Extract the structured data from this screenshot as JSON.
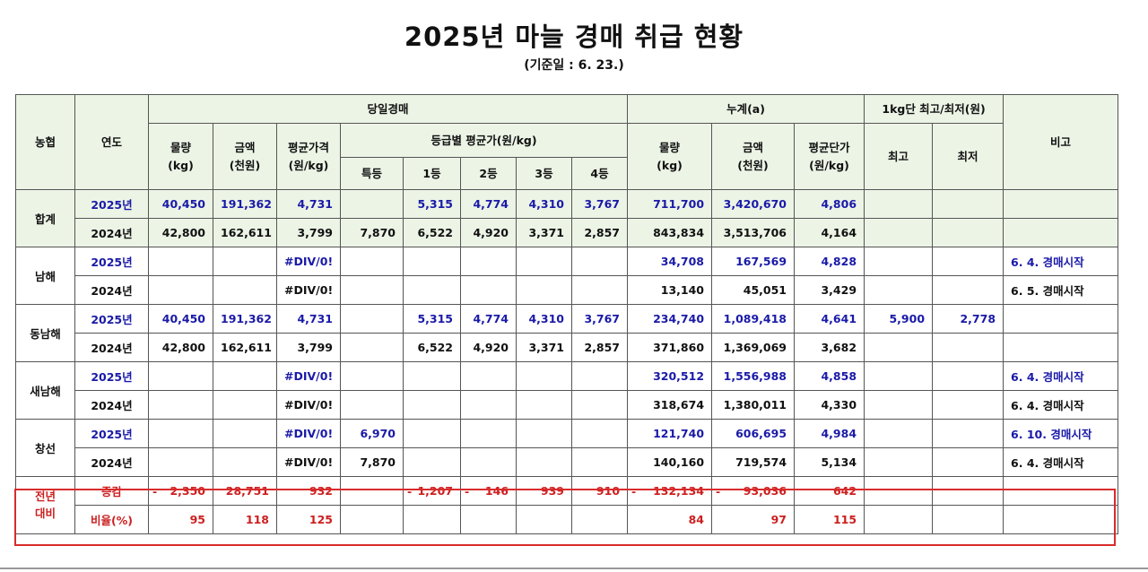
{
  "title": "2025년 마늘 경매 취급 현황",
  "subtitle": "(기준일 : 6. 23.)",
  "headers": {
    "coop": "농협",
    "year": "연도",
    "daily": "당일경매",
    "cumulative": "누계(a)",
    "maxmin": "1kg단 최고/최저(원)",
    "note": "비고",
    "volume": "물량",
    "volume_unit": "(kg)",
    "amount": "금액",
    "amount_unit": "(천원)",
    "avg_price": "평균가격",
    "avg_price_unit": "(원/kg)",
    "grade_avg": "등급별 평균가(원/kg)",
    "grade_special": "특등",
    "grade_1": "1등",
    "grade_2": "2등",
    "grade_3": "3등",
    "grade_4": "4등",
    "cum_volume": "물량",
    "cum_volume_unit": "(kg)",
    "cum_amount": "금액",
    "cum_amount_unit": "(천원)",
    "cum_avg": "평균단가",
    "cum_avg_unit": "(원/kg)",
    "max": "최고",
    "min": "최저"
  },
  "groups": [
    {
      "name": "합계",
      "rows": [
        {
          "year": "2025년",
          "vol": "40,450",
          "amt": "191,362",
          "avg": "4,731",
          "g0": "",
          "g1": "5,315",
          "g2": "4,774",
          "g3": "4,310",
          "g4": "3,767",
          "cvol": "711,700",
          "camt": "3,420,670",
          "cavg": "4,806",
          "max": "",
          "min": "",
          "note": ""
        },
        {
          "year": "2024년",
          "vol": "42,800",
          "amt": "162,611",
          "avg": "3,799",
          "g0": "7,870",
          "g1": "6,522",
          "g2": "4,920",
          "g3": "3,371",
          "g4": "2,857",
          "cvol": "843,834",
          "camt": "3,513,706",
          "cavg": "4,164",
          "max": "",
          "min": "",
          "note": ""
        }
      ]
    },
    {
      "name": "남해",
      "rows": [
        {
          "year": "2025년",
          "vol": "",
          "amt": "",
          "avg": "#DIV/0!",
          "g0": "",
          "g1": "",
          "g2": "",
          "g3": "",
          "g4": "",
          "cvol": "34,708",
          "camt": "167,569",
          "cavg": "4,828",
          "max": "",
          "min": "",
          "note": "6. 4. 경매시작"
        },
        {
          "year": "2024년",
          "vol": "",
          "amt": "",
          "avg": "#DIV/0!",
          "g0": "",
          "g1": "",
          "g2": "",
          "g3": "",
          "g4": "",
          "cvol": "13,140",
          "camt": "45,051",
          "cavg": "3,429",
          "max": "",
          "min": "",
          "note": "6. 5. 경매시작"
        }
      ]
    },
    {
      "name": "동남해",
      "rows": [
        {
          "year": "2025년",
          "vol": "40,450",
          "amt": "191,362",
          "avg": "4,731",
          "g0": "",
          "g1": "5,315",
          "g2": "4,774",
          "g3": "4,310",
          "g4": "3,767",
          "cvol": "234,740",
          "camt": "1,089,418",
          "cavg": "4,641",
          "max": "5,900",
          "min": "2,778",
          "note": ""
        },
        {
          "year": "2024년",
          "vol": "42,800",
          "amt": "162,611",
          "avg": "3,799",
          "g0": "",
          "g1": "6,522",
          "g2": "4,920",
          "g3": "3,371",
          "g4": "2,857",
          "cvol": "371,860",
          "camt": "1,369,069",
          "cavg": "3,682",
          "max": "",
          "min": "",
          "note": ""
        }
      ]
    },
    {
      "name": "새남해",
      "rows": [
        {
          "year": "2025년",
          "vol": "",
          "amt": "",
          "avg": "#DIV/0!",
          "g0": "",
          "g1": "",
          "g2": "",
          "g3": "",
          "g4": "",
          "cvol": "320,512",
          "camt": "1,556,988",
          "cavg": "4,858",
          "max": "",
          "min": "",
          "note": "6. 4. 경매시작"
        },
        {
          "year": "2024년",
          "vol": "",
          "amt": "",
          "avg": "#DIV/0!",
          "g0": "",
          "g1": "",
          "g2": "",
          "g3": "",
          "g4": "",
          "cvol": "318,674",
          "camt": "1,380,011",
          "cavg": "4,330",
          "max": "",
          "min": "",
          "note": "6. 4. 경매시작"
        }
      ]
    },
    {
      "name": "창선",
      "rows": [
        {
          "year": "2025년",
          "vol": "",
          "amt": "",
          "avg": "#DIV/0!",
          "g0": "6,970",
          "g1": "",
          "g2": "",
          "g3": "",
          "g4": "",
          "cvol": "121,740",
          "camt": "606,695",
          "cavg": "4,984",
          "max": "",
          "min": "",
          "note": "6. 10. 경매시작"
        },
        {
          "year": "2024년",
          "vol": "",
          "amt": "",
          "avg": "#DIV/0!",
          "g0": "7,870",
          "g1": "",
          "g2": "",
          "g3": "",
          "g4": "",
          "cvol": "140,160",
          "camt": "719,574",
          "cavg": "5,134",
          "max": "",
          "min": "",
          "note": "6. 4. 경매시작"
        }
      ]
    }
  ],
  "comparison": {
    "label": "전년\n대비",
    "change": {
      "label": "증감",
      "vol_sign": "-",
      "vol": "2,350",
      "amt": "28,751",
      "avg": "932",
      "g1_sign": "-",
      "g1": "1,207",
      "g2_sign": "-",
      "g2": "146",
      "g3": "939",
      "g4": "910",
      "cvol_sign": "-",
      "cvol": "132,134",
      "camt_sign": "-",
      "camt": "93,036",
      "cavg": "642"
    },
    "ratio": {
      "label": "비율(%)",
      "vol": "95",
      "amt": "118",
      "avg": "125",
      "cvol": "84",
      "camt": "97",
      "cavg": "115"
    }
  },
  "colors": {
    "header_bg": "#ecf4e6",
    "current_year": "#1a1aa8",
    "comparison": "#cc1f1f",
    "box": "#d92b2b"
  }
}
